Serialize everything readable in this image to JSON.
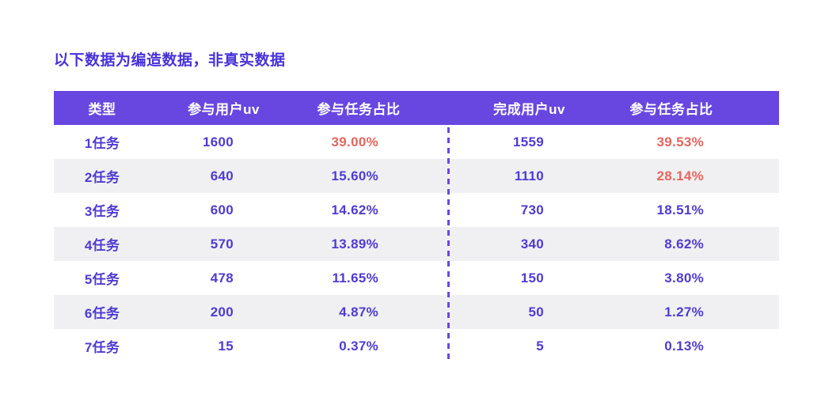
{
  "disclaimer": "以下数据为编造数据，非真实数据",
  "chart_data": {
    "type": "table",
    "title": "以下数据为编造数据，非真实数据",
    "columns": [
      "类型",
      "参与用户uv",
      "参与任务占比",
      "完成用户uv",
      "参与任务占比"
    ],
    "rows": [
      [
        "1任务",
        "1600",
        "39.00%",
        "1559",
        "39.53%"
      ],
      [
        "2任务",
        "640",
        "15.60%",
        "1110",
        "28.14%"
      ],
      [
        "3任务",
        "600",
        "14.62%",
        "730",
        "18.51%"
      ],
      [
        "4任务",
        "570",
        "13.89%",
        "340",
        "8.62%"
      ],
      [
        "5任务",
        "478",
        "11.65%",
        "150",
        "3.80%"
      ],
      [
        "6任务",
        "200",
        "4.87%",
        "50",
        "1.27%"
      ],
      [
        "7任务",
        "15",
        "0.37%",
        "5",
        "0.13%"
      ]
    ],
    "red_cells": [
      [
        2,
        4
      ],
      [
        4
      ],
      [],
      [],
      [],
      [],
      []
    ],
    "layout": {
      "striping": "alternate rows shaded starting from second data row",
      "divider": "vertical dashed line between left 参与任务占比 column and 完成用户uv column, body rows only",
      "legend_position": "none",
      "grid": "off"
    }
  },
  "colors": {
    "page_bg": "#ffffff",
    "title_text": "#4731da",
    "header_bg": "#6847e0",
    "header_text": "#ffffff",
    "body_text": "#4e3bd3",
    "highlight_text": "#e5655e",
    "row_alt_bg": "#f0f0f2",
    "divider": "#6847e0"
  }
}
